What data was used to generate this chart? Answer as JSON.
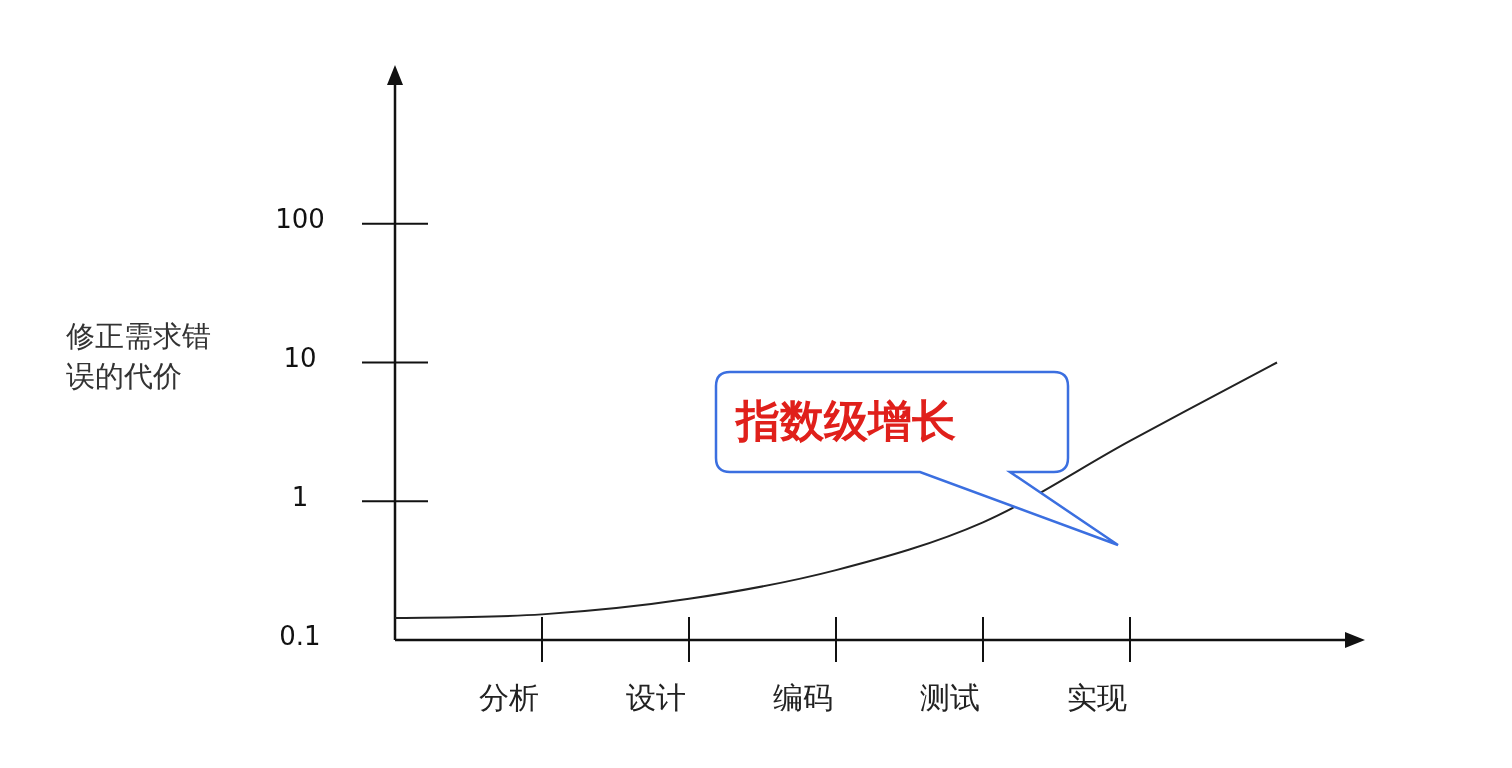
{
  "chart_data": {
    "type": "line",
    "ylabel": "修正需求错误的代价",
    "log": "y",
    "grid": false,
    "marker": "none",
    "line_style": "solid",
    "categories": [
      null,
      "分析",
      "设计",
      "编码",
      "测试",
      "实现",
      null
    ],
    "ylim": [
      0.1,
      1000
    ],
    "yticks": [
      0.1,
      1,
      10,
      100
    ],
    "series": [
      {
        "color": "#222222",
        "values": [
          0.144,
          0.153,
          0.198,
          0.319,
          0.705,
          2.72,
          10
        ]
      }
    ],
    "annotations": [
      "指数级增长"
    ]
  }
}
